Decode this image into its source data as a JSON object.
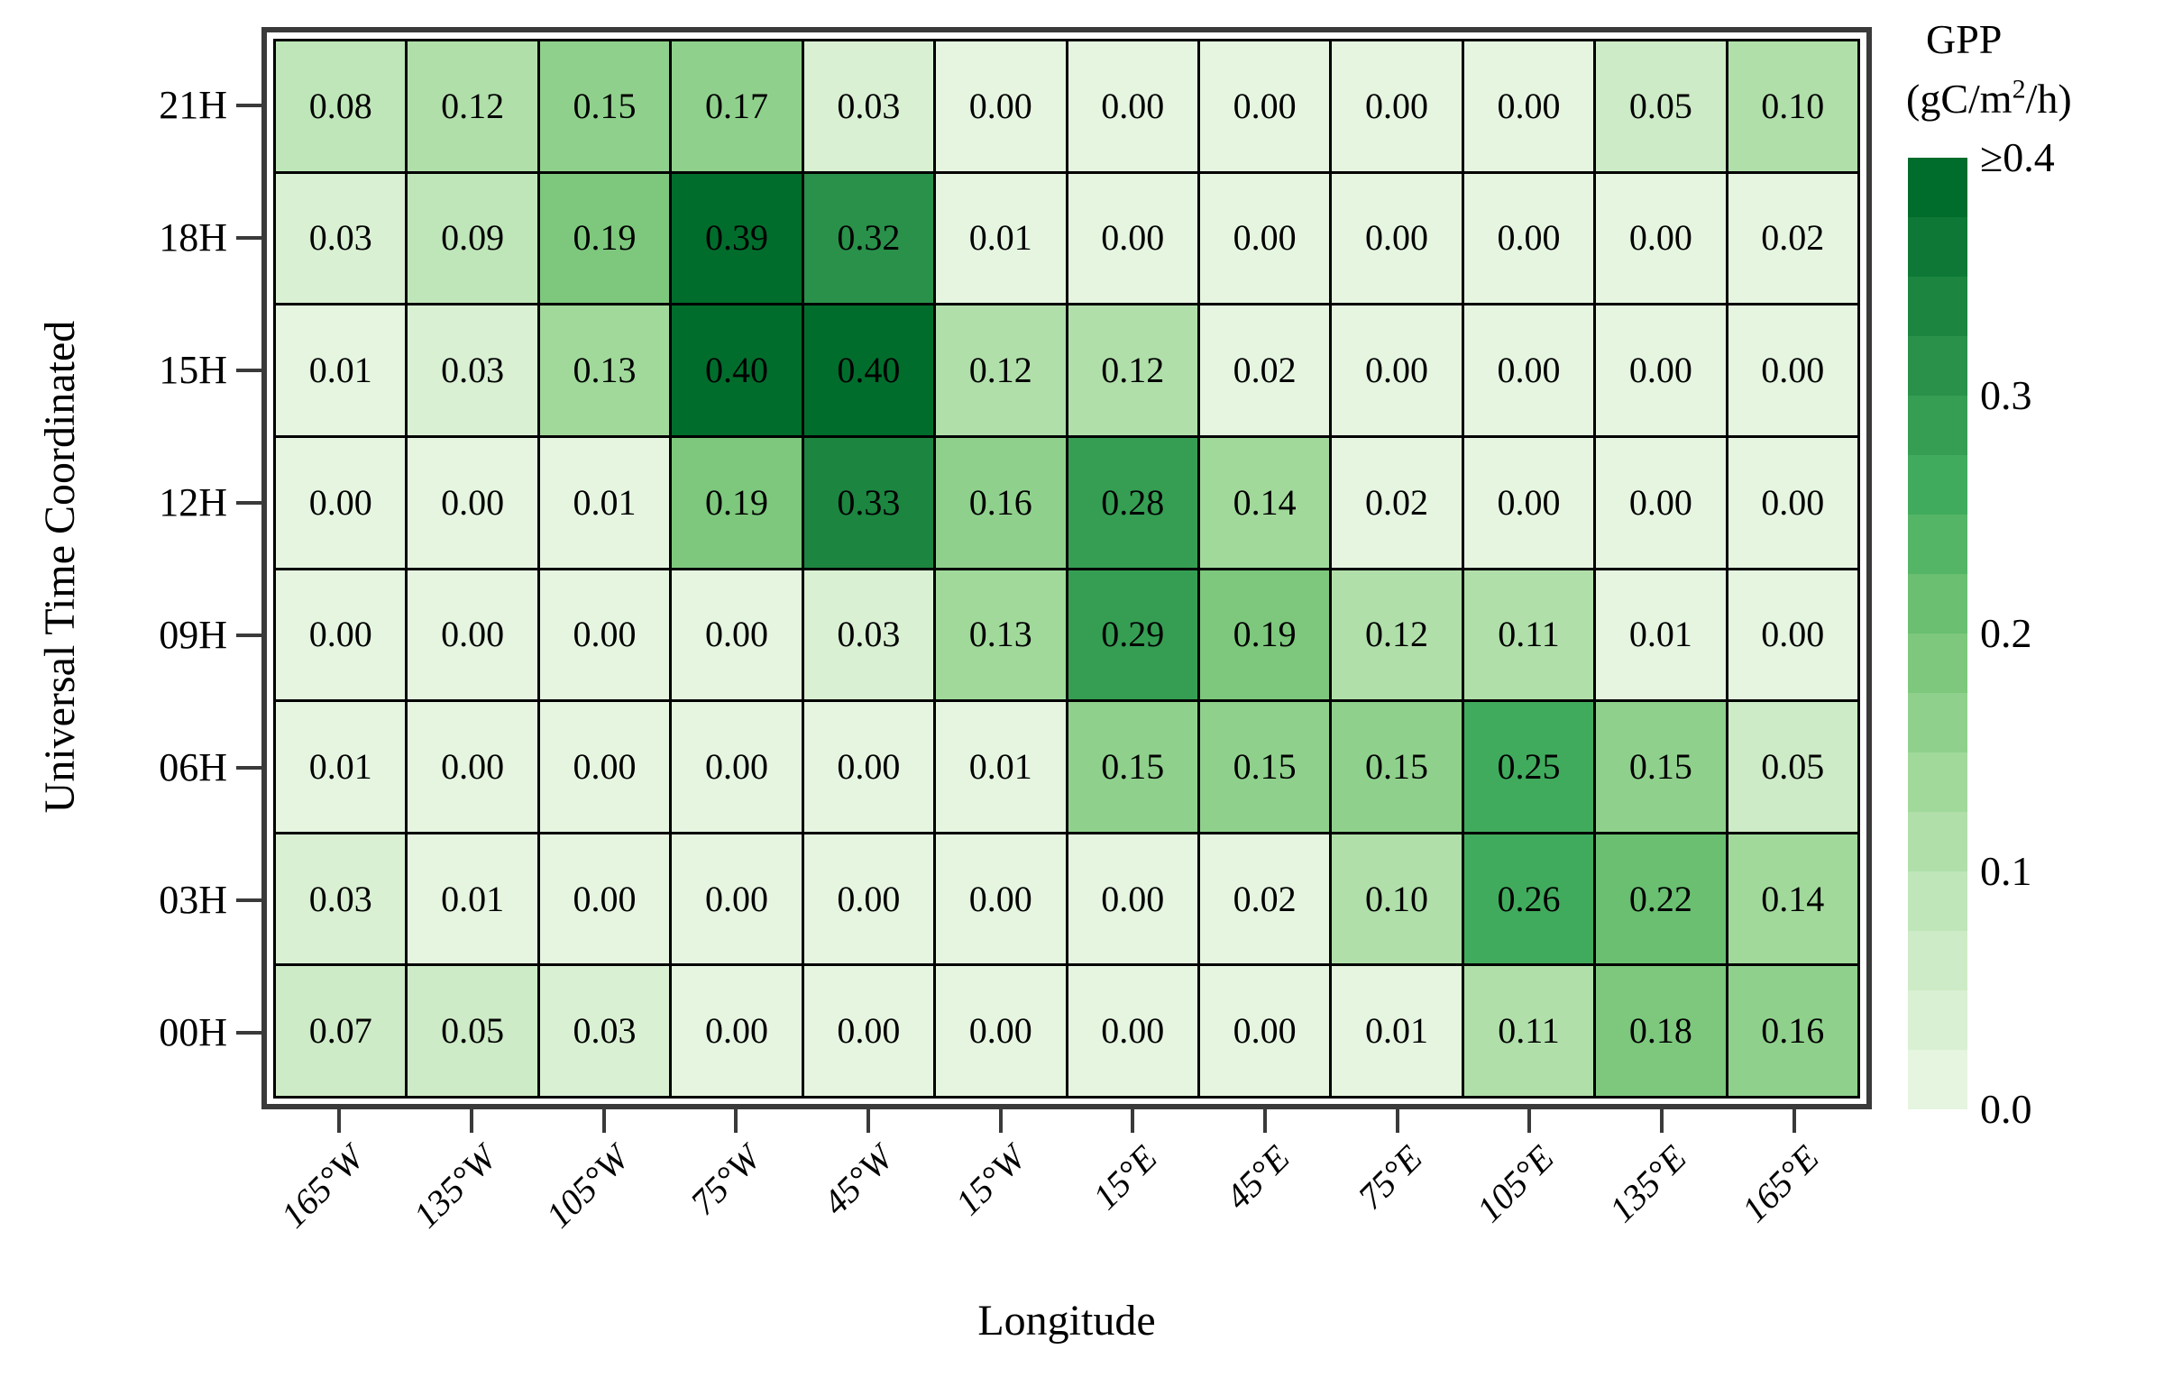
{
  "chart_data": {
    "type": "heatmap",
    "xlabel": "Longitude",
    "ylabel": "Universal Time Coordinated",
    "x_categories": [
      "165°W",
      "135°W",
      "105°W",
      "75°W",
      "45°W",
      "15°W",
      "15°E",
      "45°E",
      "75°E",
      "105°E",
      "135°E",
      "165°E"
    ],
    "y_categories": [
      "21H",
      "18H",
      "15H",
      "12H",
      "09H",
      "06H",
      "03H",
      "00H"
    ],
    "values": [
      [
        0.08,
        0.12,
        0.15,
        0.17,
        0.03,
        0.0,
        0.0,
        0.0,
        0.0,
        0.0,
        0.05,
        0.1
      ],
      [
        0.03,
        0.09,
        0.19,
        0.39,
        0.32,
        0.01,
        0.0,
        0.0,
        0.0,
        0.0,
        0.0,
        0.02
      ],
      [
        0.01,
        0.03,
        0.13,
        0.4,
        0.4,
        0.12,
        0.12,
        0.02,
        0.0,
        0.0,
        0.0,
        0.0
      ],
      [
        0.0,
        0.0,
        0.01,
        0.19,
        0.33,
        0.16,
        0.28,
        0.14,
        0.02,
        0.0,
        0.0,
        0.0
      ],
      [
        0.0,
        0.0,
        0.0,
        0.0,
        0.03,
        0.13,
        0.29,
        0.19,
        0.12,
        0.11,
        0.01,
        0.0
      ],
      [
        0.01,
        0.0,
        0.0,
        0.0,
        0.0,
        0.01,
        0.15,
        0.15,
        0.15,
        0.25,
        0.15,
        0.05
      ],
      [
        0.03,
        0.01,
        0.0,
        0.0,
        0.0,
        0.0,
        0.0,
        0.02,
        0.1,
        0.26,
        0.22,
        0.14
      ],
      [
        0.07,
        0.05,
        0.03,
        0.0,
        0.0,
        0.0,
        0.0,
        0.0,
        0.01,
        0.11,
        0.18,
        0.16
      ]
    ],
    "value_decimals": 2,
    "grid": true,
    "legend_position": "right",
    "colorbar": {
      "title": "GPP",
      "units_prefix": "(gC/m",
      "units_sup": "2",
      "units_suffix": "/h)",
      "tick_labels": [
        "≥0.4",
        "0.3",
        "0.2",
        "0.1",
        "0.0"
      ],
      "vmin": 0.0,
      "vmax": 0.4,
      "bin_size": 0.025,
      "n_bins": 16,
      "ramp_bottom_to_top": [
        "#e5f5e0",
        "#d9f0d3",
        "#cdebc6",
        "#bfe6b9",
        "#b0dfaa",
        "#a1d99b",
        "#8fd18c",
        "#7dc87d",
        "#6abf71",
        "#55b567",
        "#41ab5d",
        "#359e53",
        "#29914a",
        "#1c8540",
        "#0e7936",
        "#006d2c"
      ]
    },
    "colors": {
      "background": "#ffffff",
      "frame": "#3a3a3a",
      "cell_border": "#000000",
      "text": "#000000"
    }
  }
}
